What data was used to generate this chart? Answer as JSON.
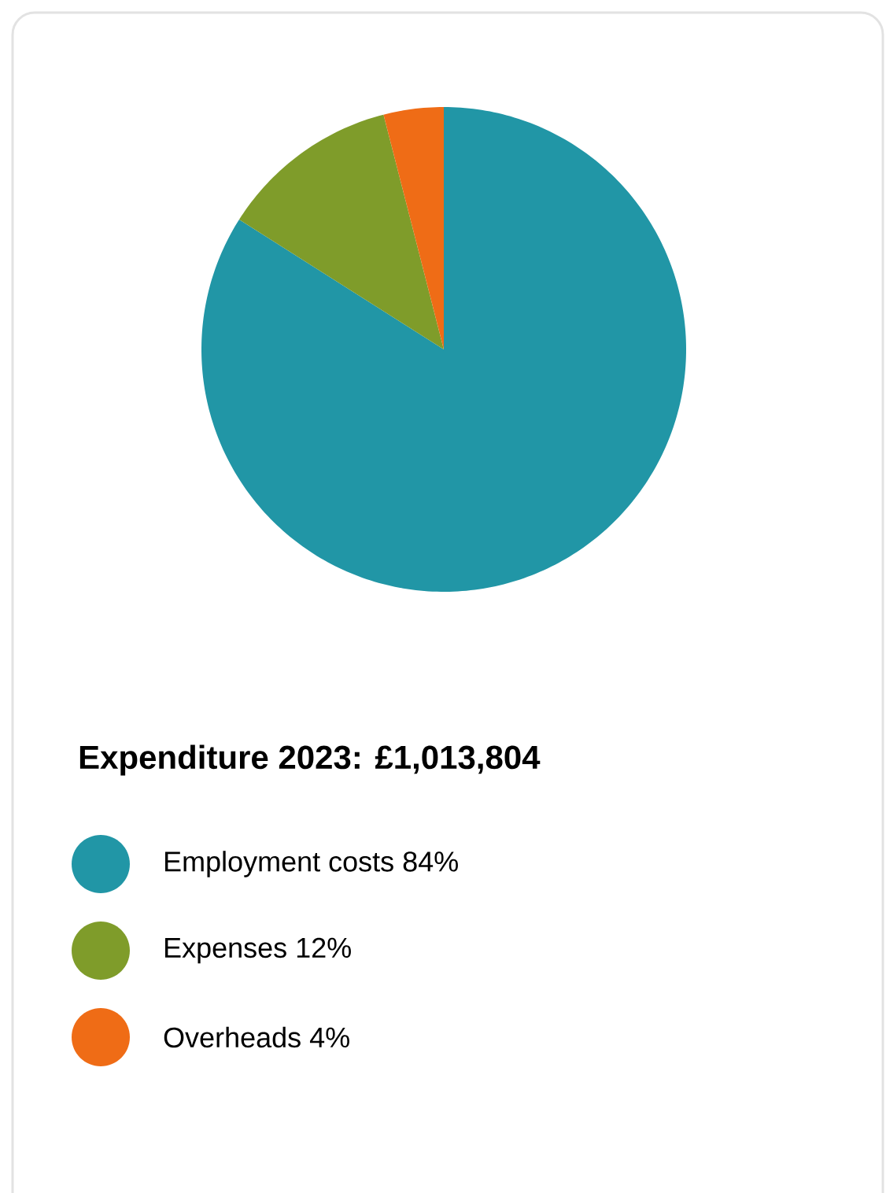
{
  "chart_data": {
    "type": "pie",
    "title": "Expenditure 2023: £1,013,804",
    "categories": [
      "Employment costs",
      "Expenses",
      "Overheads"
    ],
    "values": [
      84,
      12,
      4
    ],
    "value_labels": [
      "84%",
      "12%",
      "4%"
    ],
    "colors": [
      "#2196a6",
      "#7f9c2a",
      "#ef6c16"
    ],
    "legend": "bottom"
  }
}
